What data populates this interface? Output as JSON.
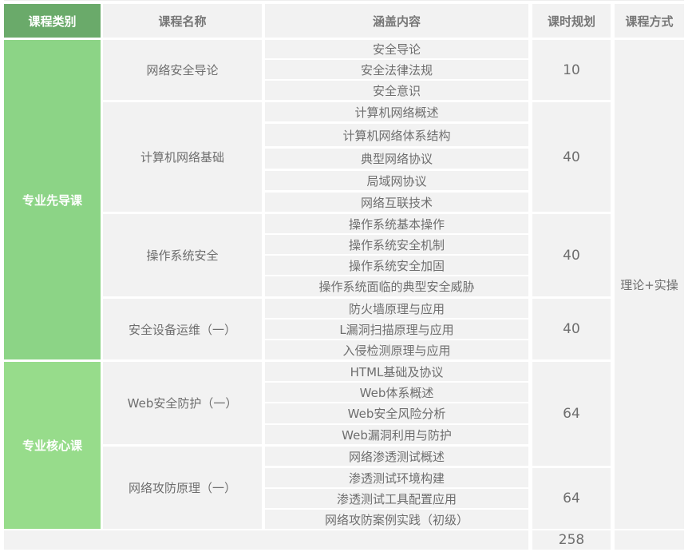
{
  "header": {
    "category": "课程类别",
    "course_name": "课程名称",
    "content": "涵盖内容",
    "hours": "课时规划",
    "mode": "课程方式"
  },
  "categories": [
    "专业先导课",
    "专业核心课"
  ],
  "courses": [
    {
      "name": "网络安全导论",
      "hours": "10",
      "topics": [
        "安全导论",
        "安全法律法规",
        "安全意识"
      ]
    },
    {
      "name": "计算机网络基础",
      "hours": "40",
      "topics": [
        "计算机网络概述",
        "计算机网络体系结构",
        "典型网络协议",
        "局域网协议",
        "网络互联技术"
      ]
    },
    {
      "name": "操作系统安全",
      "hours": "40",
      "topics": [
        "操作系统基本操作",
        "操作系统安全机制",
        "操作系统安全加固",
        "操作系统面临的典型安全威胁"
      ]
    },
    {
      "name": "安全设备运维（一）",
      "hours": "40",
      "topics": [
        "防火墙原理与应用",
        "L漏洞扫描原理与应用",
        "入侵检测原理与应用"
      ]
    },
    {
      "name": "Web安全防护（一）",
      "hours": "64",
      "topics": [
        "HTML基础及协议",
        "Web体系概述",
        "Web安全风险分析",
        "Web漏洞利用与防护"
      ]
    },
    {
      "name": "网络攻防原理（一）",
      "hours": "64",
      "topics": [
        "网络渗透测试概述",
        "渗透测试环境构建",
        "渗透测试工具配置应用",
        "网络攻防案例实践（初级）"
      ]
    }
  ],
  "mode": "理论+实操",
  "total_hours": "258",
  "colors": {
    "header_category": "#6aaa6a",
    "category_1": "#8cd486",
    "category_2": "#97dc8b",
    "cell": "#f2f2f2",
    "text": "#6e6e6e"
  }
}
